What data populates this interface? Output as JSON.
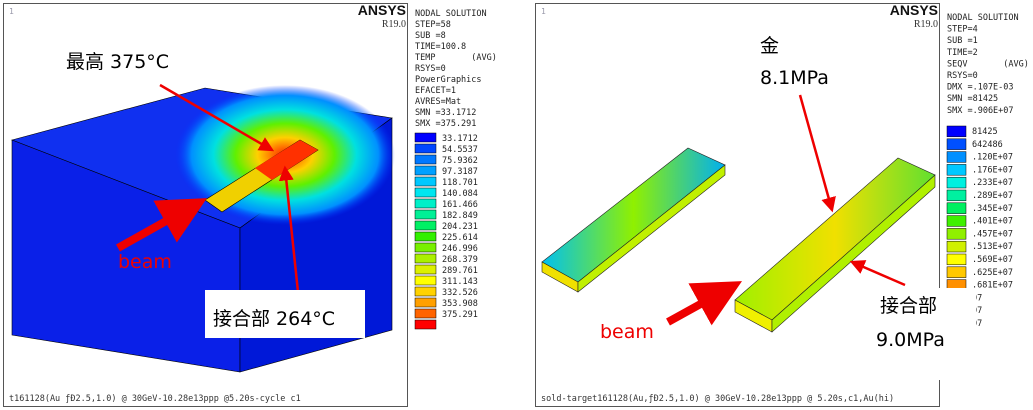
{
  "panels": [
    {
      "marker": "1",
      "brand": "ANSYS",
      "version": "R19.0",
      "info": [
        "NODAL SOLUTION",
        "STEP=58",
        "SUB =8",
        "TIME=100.8",
        "TEMP       (AVG)",
        "RSYS=0",
        "PowerGraphics",
        "EFACET=1",
        "AVRES=Mat",
        "SMN =33.1712",
        "SMX =375.291"
      ],
      "legend": {
        "values": [
          "33.1712",
          "54.5537",
          "75.9362",
          "97.3187",
          "118.701",
          "140.084",
          "161.466",
          "182.849",
          "204.231",
          "225.614",
          "246.996",
          "268.379",
          "289.761",
          "311.143",
          "332.526",
          "353.908",
          "375.291"
        ],
        "colors": [
          "#0000ff",
          "#0046ff",
          "#0078ff",
          "#00a0ff",
          "#00c8ff",
          "#00e6f0",
          "#00f0c8",
          "#00f096",
          "#00f064",
          "#32f000",
          "#78f000",
          "#aaf000",
          "#dcf000",
          "#ffff00",
          "#ffd200",
          "#ffa000",
          "#ff6400",
          "#ff0000"
        ]
      },
      "annotations": {
        "top": [
          "最高 375°C"
        ],
        "beam": [
          "beam"
        ],
        "joint": [
          "接合部 264°C"
        ]
      },
      "footer": "t161128(Au ƒÐ2.5,1.0) @ 30GeV-10.28e13ppp @5.20s-cycle c1"
    },
    {
      "marker": "1",
      "brand": "ANSYS",
      "version": "R19.0",
      "info": [
        "NODAL SOLUTION",
        "STEP=4",
        "SUB =1",
        "TIME=2",
        "SEQV       (AVG)",
        "RSYS=0",
        "DMX =.107E-03",
        "SMN =81425",
        "SMX =.906E+07"
      ],
      "legend": {
        "values": [
          "81425",
          "642486",
          ".120E+07",
          ".176E+07",
          ".233E+07",
          ".289E+07",
          ".345E+07",
          ".401E+07",
          ".457E+07",
          ".513E+07",
          ".569E+07",
          ".625E+07",
          ".681E+07",
          "07",
          "07",
          "07"
        ],
        "colors": [
          "#0000ff",
          "#0050ff",
          "#0090ff",
          "#00c8ff",
          "#00f0e0",
          "#00f0a0",
          "#00f060",
          "#40f000",
          "#90f000",
          "#d0f000",
          "#ffff00",
          "#ffc800",
          "#ff9000",
          "#ff5000",
          "#ff2800",
          "#ff0000"
        ]
      },
      "annotations": {
        "top": [
          "金",
          "8.1MPa"
        ],
        "beam": [
          "beam"
        ],
        "joint": [
          "接合部",
          "9.0MPa"
        ]
      },
      "footer": "sold-target161128(Au,ƒÐ2.5,1.0) @ 30GeV-10.28e13ppp @ 5.20s,c1,Au(hi)"
    }
  ]
}
